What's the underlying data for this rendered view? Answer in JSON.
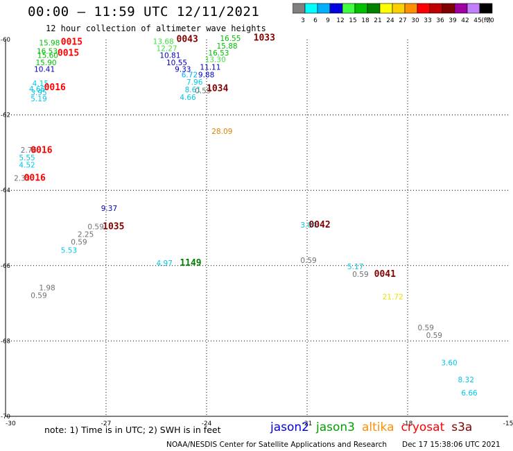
{
  "header": {
    "title": "00:00 — 11:59 UTC 12/11/2021",
    "subtitle": "12 hour collection of altimeter wave heights"
  },
  "color_scale": {
    "unit": "(ft)",
    "bins": [
      {
        "label": "3",
        "color": "#808080"
      },
      {
        "label": "6",
        "color": "#00ffff"
      },
      {
        "label": "9",
        "color": "#00b0ff"
      },
      {
        "label": "12",
        "color": "#0000e0"
      },
      {
        "label": "15",
        "color": "#40ff40"
      },
      {
        "label": "18",
        "color": "#00c000"
      },
      {
        "label": "21",
        "color": "#008000"
      },
      {
        "label": "24",
        "color": "#ffff00"
      },
      {
        "label": "27",
        "color": "#ffd000"
      },
      {
        "label": "30",
        "color": "#ff9000"
      },
      {
        "label": "33",
        "color": "#ff0000"
      },
      {
        "label": "36",
        "color": "#c00000"
      },
      {
        "label": "39",
        "color": "#800000"
      },
      {
        "label": "42",
        "color": "#a000a0"
      },
      {
        "label": "45",
        "color": "#c080ff"
      },
      {
        "label": "70",
        "color": "#000000"
      }
    ]
  },
  "axes": {
    "lat_ticks": [
      "-60",
      "-62",
      "-64",
      "-66",
      "-68",
      "-70"
    ],
    "lon_ticks": [
      "-30",
      "-27",
      "-24",
      "-21",
      "-18",
      "-15"
    ]
  },
  "observations": [
    {
      "text": "15.98",
      "lon": -29.0,
      "lat": -60.16,
      "color": "#00c000"
    },
    {
      "text": "16.53",
      "lon": -29.07,
      "lat": -60.38,
      "color": "#00c000"
    },
    {
      "text": "15.60",
      "lon": -29.05,
      "lat": -60.49,
      "color": "#00c000"
    },
    {
      "text": "15.90",
      "lon": -29.1,
      "lat": -60.68,
      "color": "#00c000"
    },
    {
      "text": "10.41",
      "lon": -29.15,
      "lat": -60.86,
      "color": "#0000c0"
    },
    {
      "text": "4.15",
      "lon": -29.2,
      "lat": -61.23,
      "color": "#00c8e8"
    },
    {
      "text": "4.66",
      "lon": -29.3,
      "lat": -61.38,
      "color": "#00c8e8"
    },
    {
      "text": "3.95",
      "lon": -29.25,
      "lat": -61.47,
      "color": "#00c8e8"
    },
    {
      "text": "5.19",
      "lon": -29.25,
      "lat": -61.64,
      "color": "#00c8e8"
    },
    {
      "text": "2.76",
      "lon": -29.55,
      "lat": -63.0,
      "color": "#707070"
    },
    {
      "text": "5.55",
      "lon": -29.6,
      "lat": -63.2,
      "color": "#00c8e8"
    },
    {
      "text": "4.52",
      "lon": -29.6,
      "lat": -63.4,
      "color": "#00c8e8"
    },
    {
      "text": "2.33",
      "lon": -29.75,
      "lat": -63.75,
      "color": "#707070"
    },
    {
      "text": "9.37",
      "lon": -27.15,
      "lat": -64.55,
      "color": "#0000c0"
    },
    {
      "text": "0.59",
      "lon": -27.55,
      "lat": -65.04,
      "color": "#707070"
    },
    {
      "text": "2.25",
      "lon": -27.85,
      "lat": -65.24,
      "color": "#707070"
    },
    {
      "text": "0.59",
      "lon": -28.05,
      "lat": -65.44,
      "color": "#707070"
    },
    {
      "text": "5.53",
      "lon": -28.35,
      "lat": -65.66,
      "color": "#00c8e8"
    },
    {
      "text": "1.98",
      "lon": -29.0,
      "lat": -66.66,
      "color": "#707070"
    },
    {
      "text": "0.59",
      "lon": -29.25,
      "lat": -66.86,
      "color": "#707070"
    },
    {
      "text": "13.68",
      "lon": -25.6,
      "lat": -60.12,
      "color": "#40e040"
    },
    {
      "text": "12.27",
      "lon": -25.5,
      "lat": -60.3,
      "color": "#40e040"
    },
    {
      "text": "10.81",
      "lon": -25.4,
      "lat": -60.49,
      "color": "#0000c0"
    },
    {
      "text": "10.55",
      "lon": -25.2,
      "lat": -60.68,
      "color": "#0000c0"
    },
    {
      "text": "9.33",
      "lon": -24.95,
      "lat": -60.86,
      "color": "#0000c0"
    },
    {
      "text": "6.72",
      "lon": -24.75,
      "lat": -61.0,
      "color": "#00b0ff"
    },
    {
      "text": "7.96",
      "lon": -24.6,
      "lat": -61.2,
      "color": "#00c8e8"
    },
    {
      "text": "8.61",
      "lon": -24.65,
      "lat": -61.4,
      "color": "#00c8e8"
    },
    {
      "text": "4.66",
      "lon": -24.8,
      "lat": -61.6,
      "color": "#00c8e8"
    },
    {
      "text": "0.59",
      "lon": -24.35,
      "lat": -61.43,
      "color": "#707070"
    },
    {
      "text": "9.88",
      "lon": -24.25,
      "lat": -61.0,
      "color": "#0000c0"
    },
    {
      "text": "11.11",
      "lon": -24.2,
      "lat": -60.8,
      "color": "#0000c0"
    },
    {
      "text": "13.30",
      "lon": -24.05,
      "lat": -60.6,
      "color": "#40e040"
    },
    {
      "text": "16.53",
      "lon": -23.95,
      "lat": -60.42,
      "color": "#00c000"
    },
    {
      "text": "15.88",
      "lon": -23.7,
      "lat": -60.24,
      "color": "#00c000"
    },
    {
      "text": "16.55",
      "lon": -23.6,
      "lat": -60.04,
      "color": "#00c000"
    },
    {
      "text": "28.09",
      "lon": -23.85,
      "lat": -62.5,
      "color": "#e08000"
    },
    {
      "text": "4.97",
      "lon": -25.5,
      "lat": -66.0,
      "color": "#00c8e8"
    },
    {
      "text": "3.04",
      "lon": -21.2,
      "lat": -64.99,
      "color": "#00c8e8"
    },
    {
      "text": "0.59",
      "lon": -21.2,
      "lat": -65.93,
      "color": "#707070"
    },
    {
      "text": "5.17",
      "lon": -19.8,
      "lat": -66.1,
      "color": "#00c8e8"
    },
    {
      "text": "0.59",
      "lon": -19.65,
      "lat": -66.3,
      "color": "#707070"
    },
    {
      "text": "21.72",
      "lon": -18.75,
      "lat": -66.9,
      "color": "#e8e000"
    },
    {
      "text": "0.59",
      "lon": -17.7,
      "lat": -67.72,
      "color": "#707070"
    },
    {
      "text": "0.59",
      "lon": -17.45,
      "lat": -67.92,
      "color": "#707070"
    },
    {
      "text": "3.60",
      "lon": -17.0,
      "lat": -68.65,
      "color": "#00c8e8"
    },
    {
      "text": "8.32",
      "lon": -16.5,
      "lat": -69.1,
      "color": "#00c8e8"
    },
    {
      "text": "6.66",
      "lon": -16.4,
      "lat": -69.45,
      "color": "#00c8e8"
    }
  ],
  "time_labels": [
    {
      "text": "0015",
      "lon": -28.35,
      "lat": -60.14
    },
    {
      "text": "0015",
      "lon": -28.45,
      "lat": -60.43
    },
    {
      "text": "0016",
      "lon": -28.85,
      "lat": -61.34
    },
    {
      "text": "0016",
      "lon": -29.25,
      "lat": -63.01
    },
    {
      "text": "0016",
      "lon": -29.45,
      "lat": -63.75
    },
    {
      "text": "1035",
      "lon": -27.1,
      "lat": -65.04
    },
    {
      "text": "0043",
      "lon": -24.9,
      "lat": -60.06
    },
    {
      "text": "1033",
      "lon": -22.6,
      "lat": -60.03
    },
    {
      "text": "1034",
      "lon": -24.0,
      "lat": -61.37
    },
    {
      "text": "1149",
      "lon": -24.8,
      "lat": -66.0
    },
    {
      "text": "0042",
      "lon": -20.95,
      "lat": -64.99
    },
    {
      "text": "0041",
      "lon": -19.0,
      "lat": -66.3
    }
  ],
  "time_label_colors": {
    "red": "#ff0000",
    "dark": "#800000",
    "green": "#008000"
  },
  "time_label_color_keys": [
    "red",
    "red",
    "red",
    "red",
    "red",
    "dark",
    "dark",
    "dark",
    "dark",
    "green",
    "dark",
    "dark"
  ],
  "note": "note: 1) Time is in UTC; 2) SWH is in feet",
  "satellites": [
    {
      "name": "jason2",
      "color": "#0000e0"
    },
    {
      "name": "jason3",
      "color": "#00a000"
    },
    {
      "name": "altika",
      "color": "#ff9000"
    },
    {
      "name": "cryosat",
      "color": "#ff0000"
    },
    {
      "name": "s3a",
      "color": "#800000"
    }
  ],
  "footer": {
    "credit": "NOAA/NESDIS Center for Satellite Applications and Research",
    "timestamp": "Dec 17 15:38:06 UTC 2021"
  }
}
